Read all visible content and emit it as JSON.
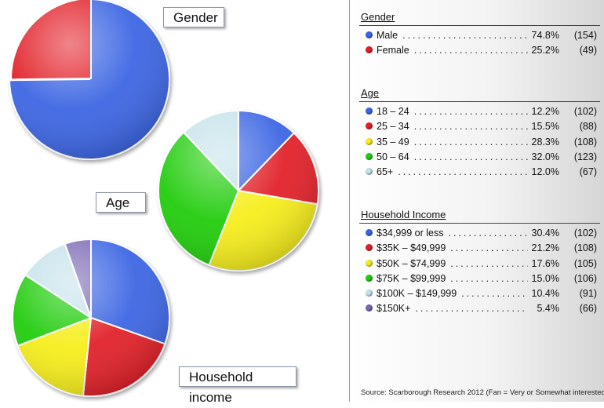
{
  "chart_data": [
    {
      "type": "pie",
      "title": "Gender",
      "labels": [
        "Male",
        "Female"
      ],
      "values": [
        74.8,
        25.2
      ],
      "counts": [
        154,
        49
      ],
      "colors": [
        "#3d66e3",
        "#e2202b"
      ]
    },
    {
      "type": "pie",
      "title": "Age",
      "labels": [
        "18 – 24",
        "25 – 34",
        "35 – 49",
        "50 – 64",
        "65+"
      ],
      "values": [
        12.2,
        15.5,
        28.3,
        32.0,
        12.0
      ],
      "counts": [
        102,
        88,
        108,
        123,
        67
      ],
      "colors": [
        "#3d66e3",
        "#e2202b",
        "#f6ee1d",
        "#22cc10",
        "#c4e2ea"
      ]
    },
    {
      "type": "pie",
      "title": "Household Income",
      "callout": "Household income",
      "labels": [
        "$34,999 or less",
        "$35K – $49,999",
        "$50K – $74,999",
        "$75K – $99,999",
        "$100K – $149,999",
        "$150K+"
      ],
      "values": [
        30.4,
        21.2,
        17.6,
        15.0,
        10.4,
        5.4
      ],
      "counts": [
        102,
        108,
        105,
        106,
        91,
        66
      ],
      "colors": [
        "#3d66e3",
        "#e2202b",
        "#f6ee1d",
        "#22cc10",
        "#c4e2ea",
        "#7a67b3"
      ]
    }
  ],
  "source": "Source: Scarborough Research 2012 (Fan = Very or Somewhat interested )"
}
